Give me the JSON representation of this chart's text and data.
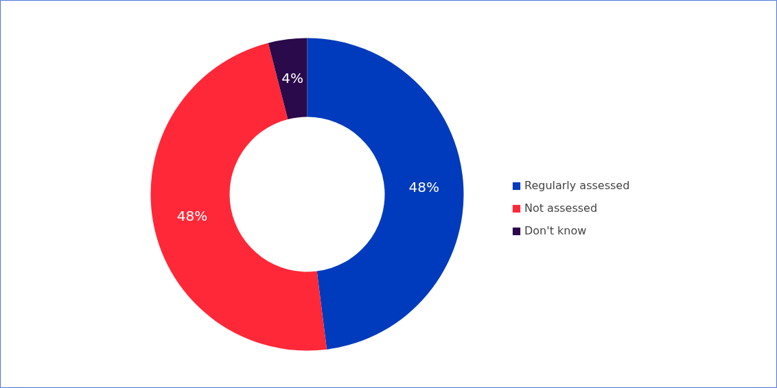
{
  "chart_data": {
    "type": "donut",
    "categories": [
      "Regularly assessed",
      "Not assessed",
      "Don't know"
    ],
    "values": [
      48,
      48,
      4
    ],
    "colors": [
      "#003bbd",
      "#ff2838",
      "#2a0a4a"
    ],
    "value_labels": [
      "48%",
      "48%",
      "4%"
    ],
    "legend": "right"
  }
}
